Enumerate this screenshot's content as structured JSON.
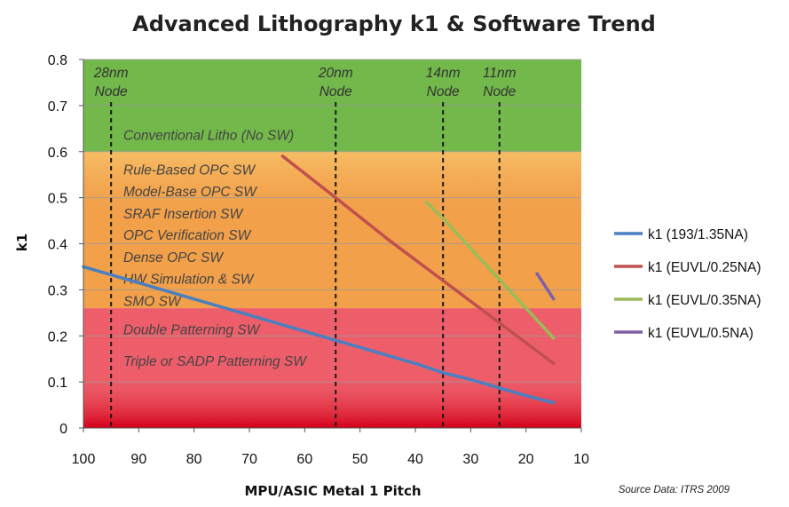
{
  "chart_data": {
    "type": "line",
    "title": "Advanced Lithography k1 & Software Trend",
    "xlabel": "MPU/ASIC Metal 1 Pitch",
    "ylabel": "k1",
    "xlim": [
      100,
      10
    ],
    "ylim": [
      0,
      0.8
    ],
    "x_ticks": [
      "100",
      "90",
      "80",
      "70",
      "60",
      "50",
      "40",
      "30",
      "20",
      "10"
    ],
    "y_ticks": [
      "0",
      "0.1",
      "0.2",
      "0.3",
      "0.4",
      "0.5",
      "0.6",
      "0.7",
      "0.8"
    ],
    "grid": true,
    "legend_position": "right",
    "source_note": "Source Data: ITRS 2009",
    "bands": [
      {
        "from": 0.6,
        "to": 0.8,
        "color": "#72b84a"
      },
      {
        "from": 0.26,
        "to": 0.6,
        "color": "#f2a04a"
      },
      {
        "from": 0.0,
        "to": 0.26,
        "color": "#ee5e6a"
      }
    ],
    "nodes": [
      {
        "x": 95,
        "line1": "28nm",
        "line2": "Node"
      },
      {
        "x": 54.4,
        "line1": "20nm",
        "line2": "Node"
      },
      {
        "x": 35,
        "line1": "14nm",
        "line2": "Node"
      },
      {
        "x": 24.8,
        "line1": "11nm",
        "line2": "Node"
      }
    ],
    "band_labels": [
      {
        "text": "Conventional Litho (No SW)",
        "y": 0.635
      },
      {
        "text": "Rule-Based OPC SW",
        "y": 0.56
      },
      {
        "text": "Model-Base OPC SW",
        "y": 0.513
      },
      {
        "text": "SRAF Insertion SW",
        "y": 0.465
      },
      {
        "text": "OPC Verification SW",
        "y": 0.418
      },
      {
        "text": "Dense OPC SW",
        "y": 0.37
      },
      {
        "text": "HW Simulation & SW",
        "y": 0.323
      },
      {
        "text": "SMO SW",
        "y": 0.275
      },
      {
        "text": "Double Patterning SW",
        "y": 0.213
      },
      {
        "text": "Triple or SADP Patterning SW",
        "y": 0.145
      }
    ],
    "series": [
      {
        "name": "k1 (193/1.35NA)",
        "color": "#4a7fc1",
        "x": [
          100,
          90,
          80,
          70,
          60,
          54.4,
          50,
          40,
          35,
          30,
          20,
          15
        ],
        "y": [
          0.35,
          0.315,
          0.28,
          0.245,
          0.21,
          0.19,
          0.175,
          0.14,
          0.12,
          0.105,
          0.07,
          0.055
        ]
      },
      {
        "name": "k1 (EUVL/0.25NA)",
        "color": "#c0504d",
        "x": [
          64,
          54.4,
          45,
          35,
          25,
          15
        ],
        "y": [
          0.59,
          0.5,
          0.41,
          0.32,
          0.23,
          0.14
        ]
      },
      {
        "name": "k1 (EUVL/0.35NA)",
        "color": "#9bbb59",
        "x": [
          38,
          35,
          30,
          25,
          20,
          15
        ],
        "y": [
          0.49,
          0.455,
          0.39,
          0.325,
          0.26,
          0.195
        ]
      },
      {
        "name": "k1 (EUVL/0.5NA)",
        "color": "#7f5fa8",
        "x": [
          18,
          15
        ],
        "y": [
          0.335,
          0.28
        ]
      }
    ]
  }
}
